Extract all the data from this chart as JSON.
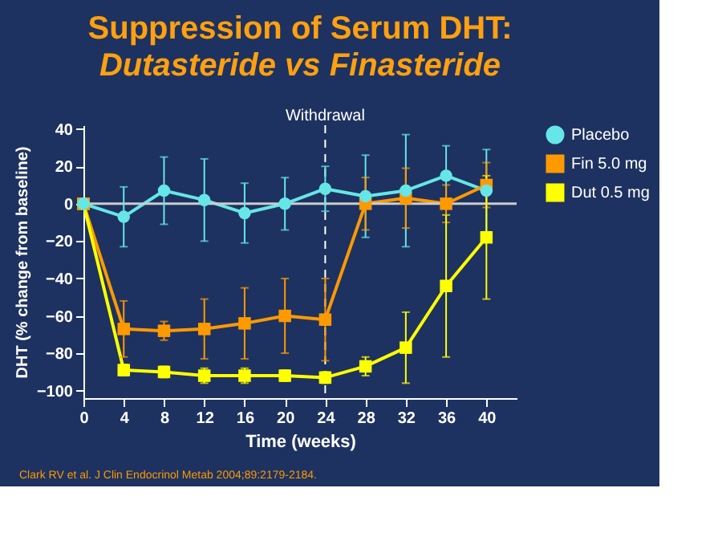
{
  "chart_data": {
    "type": "line",
    "title": "Suppression of Serum DHT:",
    "subtitle": "Dutasteride vs Finasteride",
    "xlabel": "Time (weeks)",
    "ylabel": "DHT (% change from baseline)",
    "x": [
      0,
      4,
      8,
      12,
      16,
      20,
      24,
      28,
      32,
      36,
      40
    ],
    "series": [
      {
        "name": "Placebo",
        "color": "#66e6e6",
        "marker": "circle",
        "values": [
          0,
          -7,
          7,
          2,
          -5,
          0,
          8,
          4,
          7,
          15,
          7
        ],
        "errors": [
          null,
          16,
          18,
          22,
          16,
          14,
          12,
          22,
          30,
          16,
          22
        ]
      },
      {
        "name": "Fin 5.0 mg",
        "color": "#ff9900",
        "marker": "square",
        "values": [
          0,
          -67,
          -68,
          -67,
          -64,
          -60,
          -62,
          0,
          3,
          0,
          10
        ],
        "errors": [
          null,
          15,
          5,
          16,
          19,
          20,
          22,
          14,
          16,
          10,
          12
        ]
      },
      {
        "name": "Dut 0.5 mg",
        "color": "#ffff00",
        "marker": "square",
        "values": [
          0,
          -89,
          -90,
          -92,
          -92,
          -92,
          -93,
          -87,
          -77,
          -44,
          -18
        ],
        "errors": [
          null,
          3,
          3,
          4,
          4,
          3,
          3,
          5,
          19,
          38,
          33
        ]
      }
    ],
    "xlim": [
      0,
      43
    ],
    "xticks": [
      0,
      4,
      8,
      12,
      16,
      20,
      24,
      28,
      32,
      36,
      40
    ],
    "ylim": [
      -104,
      42
    ],
    "yticks": [
      -100,
      -80,
      -60,
      -40,
      -20,
      0,
      20,
      40
    ],
    "ref_lines": [
      {
        "axis": "x",
        "value": 24,
        "label": "Withdrawal",
        "color": "#ffffff",
        "line_style": "dashed"
      },
      {
        "axis": "y",
        "value": 0,
        "label": null,
        "color": "#cccccc",
        "line_style": "solid"
      }
    ],
    "annotations": [
      "Clark RV et al. J Clin Endocrinol Metab 2004;89:2179-2184."
    ],
    "legend": "right",
    "grid": false,
    "line_style": "solid"
  }
}
